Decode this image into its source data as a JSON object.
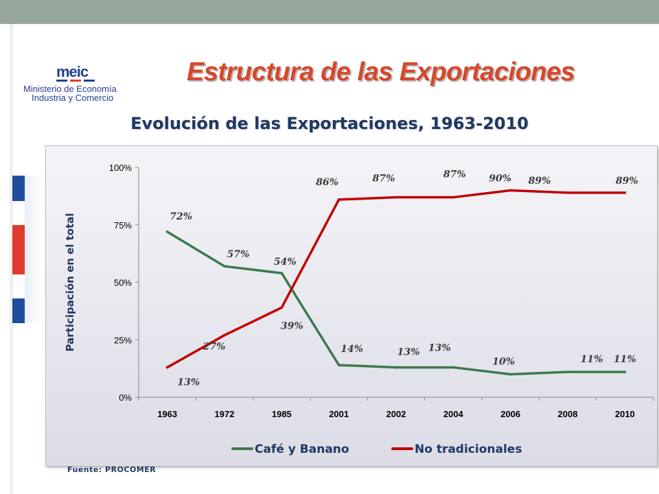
{
  "header": {
    "title": "Estructura de las Exportaciones",
    "subtitle": "Evolución de las Exportaciones, 1963-2010"
  },
  "logo": {
    "brand": "meic",
    "line1": "Ministerio de Economía",
    "line2": "Industria y Comercio"
  },
  "footer": {
    "source": "Fuente: PROCOMER"
  },
  "colors": {
    "title": "#d8472b",
    "subtitle": "#1f3864",
    "series_cafe": "#3d7a4d",
    "series_no_trad": "#c00000"
  },
  "chart_data": {
    "type": "line",
    "categories": [
      "1963",
      "1972",
      "1985",
      "2001",
      "2002",
      "2004",
      "2006",
      "2008",
      "2010"
    ],
    "series": [
      {
        "name": "Café y Banano",
        "values": [
          72,
          57,
          54,
          14,
          13,
          13,
          10,
          11,
          11
        ],
        "labels": [
          "72%",
          "57%",
          "54%",
          "14%",
          "13%",
          "13%",
          "10%",
          "11%",
          "11%"
        ],
        "color": "#3d7a4d"
      },
      {
        "name": "No tradicionales",
        "values": [
          13,
          27,
          39,
          86,
          87,
          87,
          90,
          89,
          89
        ],
        "labels": [
          "13%",
          "27%",
          "39%",
          "86%",
          "87%",
          "87%",
          "90%",
          "89%",
          "89%"
        ],
        "color": "#c00000"
      }
    ],
    "ylabel": "Participación en el total",
    "yticks": [
      "0%",
      "25%",
      "50%",
      "75%",
      "100%"
    ],
    "ylim": [
      0,
      100
    ],
    "legend": "bottom",
    "grid": false
  }
}
